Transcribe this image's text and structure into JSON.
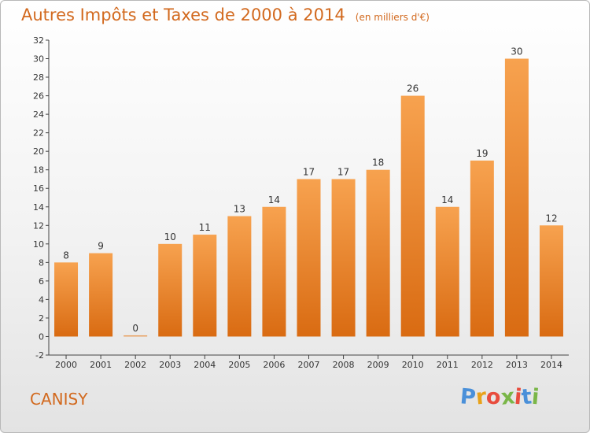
{
  "chart_data": {
    "type": "bar",
    "title": "Autres Impôts et Taxes de 2000 à 2014",
    "subtitle": "(en milliers d'€)",
    "categories": [
      "2000",
      "2001",
      "2002",
      "2003",
      "2004",
      "2005",
      "2006",
      "2007",
      "2008",
      "2009",
      "2010",
      "2011",
      "2012",
      "2013",
      "2014"
    ],
    "values": [
      8,
      9,
      0,
      10,
      11,
      13,
      14,
      17,
      17,
      18,
      26,
      14,
      19,
      30,
      12
    ],
    "ylim": [
      -2,
      32
    ],
    "yticks": [
      -2,
      0,
      2,
      4,
      6,
      8,
      10,
      12,
      14,
      16,
      18,
      20,
      22,
      24,
      26,
      28,
      30,
      32
    ],
    "xlabel": "",
    "ylabel": "",
    "grid": false,
    "bar_color": "#f0933a"
  },
  "footer": {
    "place": "CANISY",
    "logo_letters": [
      "P",
      "r",
      "o",
      "x",
      "i",
      "t",
      "i"
    ]
  },
  "colors": {
    "accent": "#d2691e",
    "logo": [
      "#4a90d9",
      "#e8a21a",
      "#e84c3d",
      "#7ab648",
      "#e84c3d",
      "#4a90d9",
      "#7ab648"
    ]
  }
}
